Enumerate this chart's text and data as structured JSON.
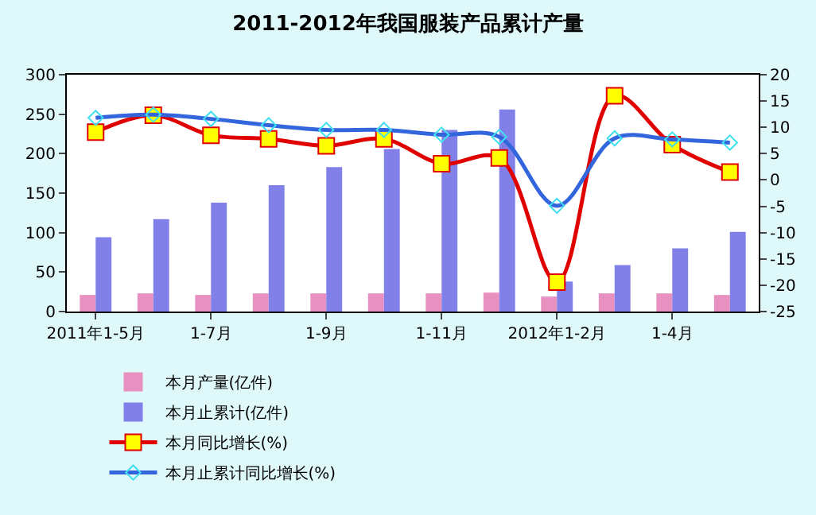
{
  "chart_data": {
    "type": "bar",
    "title": "2011-2012年我国服装产品累计产量",
    "categories": [
      "2011年1-5月",
      null,
      "1-7月",
      null,
      "1-9月",
      null,
      "1-11月",
      null,
      "2012年1-2月",
      null,
      "1-4月",
      null
    ],
    "series": [
      {
        "name": "本月产量(亿件)",
        "color": "#e890c0",
        "values": [
          21,
          23,
          21,
          23,
          23,
          23,
          23,
          24,
          19,
          23,
          23,
          21
        ]
      },
      {
        "name": "本月止累计(亿件)",
        "color": "#8080e8",
        "values": [
          94,
          117,
          138,
          160,
          183,
          206,
          230,
          256,
          38,
          59,
          80,
          101
        ]
      },
      {
        "name": "本月同比增长(%)",
        "type": "line",
        "axis": "y2",
        "color": "#e00000",
        "marker": "square",
        "values": [
          9.1,
          12.3,
          8.5,
          7.8,
          6.5,
          7.8,
          3.1,
          4.2,
          -19.4,
          16.0,
          6.7,
          1.5
        ]
      },
      {
        "name": "本月止累计同比增长(%)",
        "type": "line",
        "axis": "y2",
        "color": "#3366dd",
        "marker": "diamond",
        "values": [
          11.8,
          12.4,
          11.6,
          10.4,
          9.5,
          9.5,
          8.6,
          8.2,
          -4.9,
          7.9,
          7.7,
          7.1
        ]
      }
    ],
    "ylim": [
      0,
      300
    ],
    "yticks": [
      0,
      50,
      100,
      150,
      200,
      250,
      300
    ],
    "y2lim": [
      -25,
      20
    ],
    "y2ticks": [
      -25,
      -20,
      -15,
      -10,
      -5,
      0,
      5,
      10,
      15,
      20
    ],
    "legend": "bottom"
  }
}
